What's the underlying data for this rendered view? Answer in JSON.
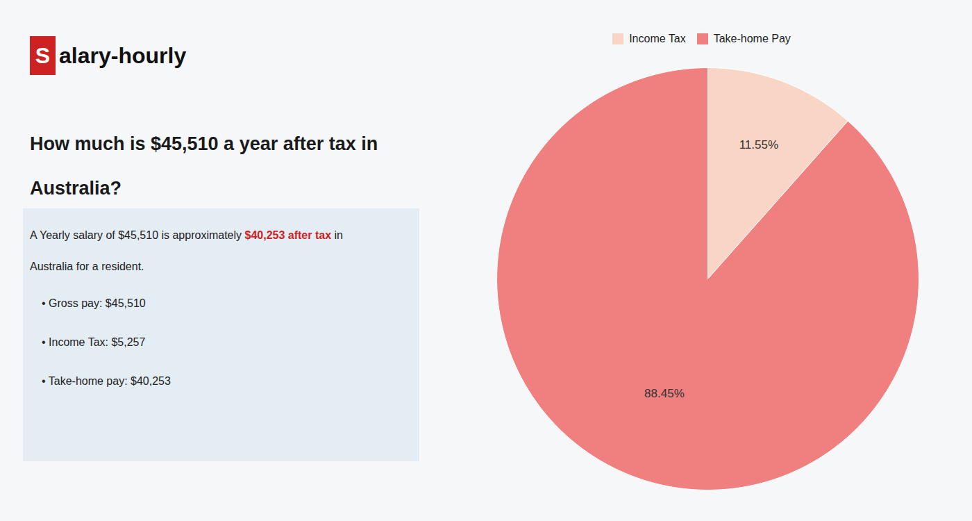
{
  "chart_data": {
    "type": "pie",
    "title": "How much is $45,510 a year after tax in",
    "subtitle": "Australia?",
    "annotations": [
      [
        {
          "text": "S",
          "color": "#cc2222"
        },
        {
          "text": "alary-hourly"
        }
      ],
      [
        {
          "text": "A Yearly salary of $45,510 is approximately "
        },
        {
          "text": "$40,253 after tax",
          "color": "#cc2222"
        },
        {
          "text": " in"
        }
      ],
      [
        {
          "text": "Australia for a resident."
        }
      ],
      [
        {
          "text": "• Gross pay: $45,510"
        }
      ],
      [
        {
          "text": "• Income Tax: $5,257"
        }
      ],
      [
        {
          "text": "• Take-home pay: $40,253"
        }
      ]
    ],
    "categories": [
      "Income Tax",
      "Take-home Pay"
    ],
    "values": [
      11.55,
      88.45
    ],
    "value_labels": [
      "11.55%",
      "88.45%"
    ],
    "colors": [
      "#f9d5c5",
      "#f08080"
    ],
    "data_labels": true,
    "legend": "top"
  }
}
